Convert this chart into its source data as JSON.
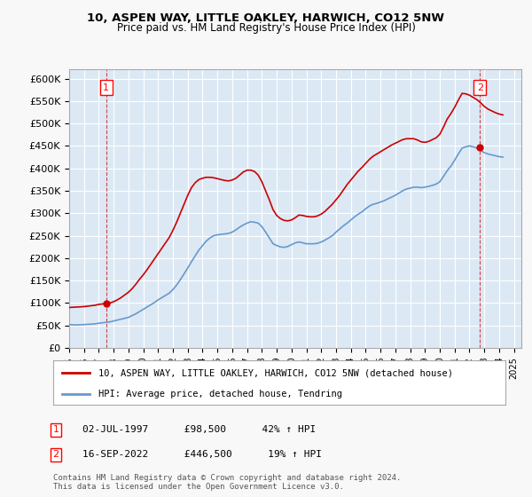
{
  "title1": "10, ASPEN WAY, LITTLE OAKLEY, HARWICH, CO12 5NW",
  "title2": "Price paid vs. HM Land Registry's House Price Index (HPI)",
  "ylabel": "",
  "ylim": [
    0,
    620000
  ],
  "yticks": [
    0,
    50000,
    100000,
    150000,
    200000,
    250000,
    300000,
    350000,
    400000,
    450000,
    500000,
    550000,
    600000
  ],
  "xlim_start": 1995.0,
  "xlim_end": 2025.5,
  "background_color": "#dce9f5",
  "plot_bg": "#dce9f5",
  "grid_color": "#ffffff",
  "purchase1_date": 1997.5,
  "purchase1_price": 98500,
  "purchase2_date": 2022.71,
  "purchase2_price": 446500,
  "legend_line1": "10, ASPEN WAY, LITTLE OAKLEY, HARWICH, CO12 5NW (detached house)",
  "legend_line2": "HPI: Average price, detached house, Tendring",
  "annotation1_label": "1",
  "annotation1_text": "02-JUL-1997      £98,500      42% ↑ HPI",
  "annotation2_label": "2",
  "annotation2_text": "16-SEP-2022      £446,500      19% ↑ HPI",
  "footer": "Contains HM Land Registry data © Crown copyright and database right 2024.\nThis data is licensed under the Open Government Licence v3.0.",
  "hpi_color": "#6699cc",
  "price_color": "#cc0000",
  "marker_color": "#cc0000",
  "hpi_years": [
    1995.0,
    1995.25,
    1995.5,
    1995.75,
    1996.0,
    1996.25,
    1996.5,
    1996.75,
    1997.0,
    1997.25,
    1997.5,
    1997.75,
    1998.0,
    1998.25,
    1998.5,
    1998.75,
    1999.0,
    1999.25,
    1999.5,
    1999.75,
    2000.0,
    2000.25,
    2000.5,
    2000.75,
    2001.0,
    2001.25,
    2001.5,
    2001.75,
    2002.0,
    2002.25,
    2002.5,
    2002.75,
    2003.0,
    2003.25,
    2003.5,
    2003.75,
    2004.0,
    2004.25,
    2004.5,
    2004.75,
    2005.0,
    2005.25,
    2005.5,
    2005.75,
    2006.0,
    2006.25,
    2006.5,
    2006.75,
    2007.0,
    2007.25,
    2007.5,
    2007.75,
    2008.0,
    2008.25,
    2008.5,
    2008.75,
    2009.0,
    2009.25,
    2009.5,
    2009.75,
    2010.0,
    2010.25,
    2010.5,
    2010.75,
    2011.0,
    2011.25,
    2011.5,
    2011.75,
    2012.0,
    2012.25,
    2012.5,
    2012.75,
    2013.0,
    2013.25,
    2013.5,
    2013.75,
    2014.0,
    2014.25,
    2014.5,
    2014.75,
    2015.0,
    2015.25,
    2015.5,
    2015.75,
    2016.0,
    2016.25,
    2016.5,
    2016.75,
    2017.0,
    2017.25,
    2017.5,
    2017.75,
    2018.0,
    2018.25,
    2018.5,
    2018.75,
    2019.0,
    2019.25,
    2019.5,
    2019.75,
    2020.0,
    2020.25,
    2020.5,
    2020.75,
    2021.0,
    2021.25,
    2021.5,
    2021.75,
    2022.0,
    2022.25,
    2022.5,
    2022.75,
    2023.0,
    2023.25,
    2023.5,
    2023.75,
    2024.0,
    2024.25
  ],
  "hpi_values": [
    52000,
    51500,
    51000,
    51500,
    52000,
    52500,
    53000,
    53500,
    55000,
    56000,
    57000,
    58000,
    60000,
    62000,
    64000,
    66000,
    68000,
    72000,
    76000,
    81000,
    86000,
    91000,
    96000,
    101000,
    107000,
    112000,
    117000,
    122000,
    130000,
    140000,
    152000,
    165000,
    178000,
    192000,
    205000,
    218000,
    228000,
    238000,
    245000,
    250000,
    252000,
    253000,
    254000,
    255000,
    258000,
    263000,
    269000,
    274000,
    278000,
    281000,
    280000,
    278000,
    270000,
    258000,
    245000,
    232000,
    228000,
    225000,
    224000,
    226000,
    230000,
    234000,
    236000,
    234000,
    232000,
    232000,
    232000,
    233000,
    236000,
    240000,
    245000,
    250000,
    258000,
    265000,
    272000,
    278000,
    285000,
    292000,
    298000,
    303000,
    310000,
    316000,
    320000,
    322000,
    325000,
    328000,
    332000,
    336000,
    340000,
    345000,
    350000,
    354000,
    356000,
    358000,
    358000,
    357000,
    358000,
    360000,
    362000,
    365000,
    370000,
    382000,
    395000,
    405000,
    418000,
    432000,
    445000,
    448000,
    450000,
    448000,
    445000,
    440000,
    435000,
    432000,
    430000,
    428000,
    426000,
    425000
  ],
  "price_years": [
    1995.0,
    1995.25,
    1995.5,
    1995.75,
    1996.0,
    1996.25,
    1996.5,
    1996.75,
    1997.0,
    1997.25,
    1997.5,
    1997.75,
    1998.0,
    1998.25,
    1998.5,
    1998.75,
    1999.0,
    1999.25,
    1999.5,
    1999.75,
    2000.0,
    2000.25,
    2000.5,
    2000.75,
    2001.0,
    2001.25,
    2001.5,
    2001.75,
    2002.0,
    2002.25,
    2002.5,
    2002.75,
    2003.0,
    2003.25,
    2003.5,
    2003.75,
    2004.0,
    2004.25,
    2004.5,
    2004.75,
    2005.0,
    2005.25,
    2005.5,
    2005.75,
    2006.0,
    2006.25,
    2006.5,
    2006.75,
    2007.0,
    2007.25,
    2007.5,
    2007.75,
    2008.0,
    2008.25,
    2008.5,
    2008.75,
    2009.0,
    2009.25,
    2009.5,
    2009.75,
    2010.0,
    2010.25,
    2010.5,
    2010.75,
    2011.0,
    2011.25,
    2011.5,
    2011.75,
    2012.0,
    2012.25,
    2012.5,
    2012.75,
    2013.0,
    2013.25,
    2013.5,
    2013.75,
    2014.0,
    2014.25,
    2014.5,
    2014.75,
    2015.0,
    2015.25,
    2015.5,
    2015.75,
    2016.0,
    2016.25,
    2016.5,
    2016.75,
    2017.0,
    2017.25,
    2017.5,
    2017.75,
    2018.0,
    2018.25,
    2018.5,
    2018.75,
    2019.0,
    2019.25,
    2019.5,
    2019.75,
    2020.0,
    2020.25,
    2020.5,
    2020.75,
    2021.0,
    2021.25,
    2021.5,
    2021.75,
    2022.0,
    2022.25,
    2022.5,
    2022.75,
    2023.0,
    2023.25,
    2023.5,
    2023.75,
    2024.0,
    2024.25
  ],
  "price_values": [
    90000,
    90500,
    91000,
    91500,
    92000,
    93000,
    94000,
    95000,
    97000,
    98000,
    98500,
    100000,
    103000,
    107000,
    112000,
    118000,
    124000,
    132000,
    142000,
    153000,
    163000,
    174000,
    186000,
    198000,
    210000,
    222000,
    234000,
    246000,
    262000,
    280000,
    300000,
    320000,
    340000,
    357000,
    368000,
    375000,
    378000,
    380000,
    380000,
    379000,
    377000,
    375000,
    373000,
    372000,
    374000,
    378000,
    385000,
    392000,
    396000,
    396000,
    393000,
    385000,
    370000,
    350000,
    330000,
    308000,
    295000,
    288000,
    284000,
    283000,
    285000,
    290000,
    296000,
    295000,
    293000,
    292000,
    292000,
    294000,
    298000,
    304000,
    312000,
    320000,
    330000,
    340000,
    352000,
    364000,
    374000,
    384000,
    394000,
    402000,
    411000,
    420000,
    427000,
    432000,
    437000,
    442000,
    447000,
    452000,
    456000,
    460000,
    464000,
    466000,
    466000,
    466000,
    463000,
    459000,
    458000,
    460000,
    464000,
    468000,
    476000,
    492000,
    510000,
    522000,
    536000,
    552000,
    567000,
    566000,
    563000,
    558000,
    553000,
    546000,
    538000,
    532000,
    528000,
    524000,
    521000,
    519000
  ]
}
